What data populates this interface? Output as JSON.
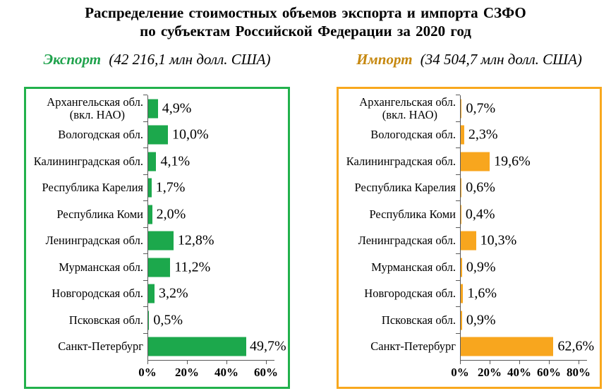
{
  "title": {
    "line1": "Распределение стоимостных объемов  экспорта  и  импорта СЗФО",
    "line2": "по  субъектам  Российской  Федерации за 2020 год"
  },
  "colors": {
    "axis": "#595959",
    "text": "#000000",
    "export_accent": "#1FA24C",
    "import_accent": "#C6880F"
  },
  "chart_data": [
    {
      "type": "bar",
      "orientation": "horizontal",
      "name": "Экспорт",
      "total_label": "(42 216,1 млн  долл. США)",
      "accent_color": "#1FA24C",
      "bar_color": "#1CA84C",
      "border_color": "#22B14C",
      "categories": [
        "Архангельская обл.\n(вкл. НАО)",
        "Вологодская обл.",
        "Калининградская обл.",
        "Республика Карелия",
        "Республика Коми",
        "Ленинградская обл.",
        "Мурманская обл.",
        "Новгородская обл.",
        "Псковская обл.",
        "Санкт-Петербург"
      ],
      "values": [
        4.9,
        10.0,
        4.1,
        1.7,
        2.0,
        12.8,
        11.2,
        3.2,
        0.5,
        49.7
      ],
      "value_labels": [
        "4,9%",
        "10,0%",
        "4,1%",
        "1,7%",
        "2,0%",
        "12,8%",
        "11,2%",
        "3,2%",
        "0,5%",
        "49,7%"
      ],
      "x_ticks": [
        "0%",
        "20%",
        "40%",
        "60%"
      ],
      "x_max": 60,
      "unit": "%",
      "grid": false,
      "legend": false
    },
    {
      "type": "bar",
      "orientation": "horizontal",
      "name": "Импорт",
      "total_label": "(34 504,7  млн  долл. США)",
      "accent_color": "#C6880F",
      "bar_color": "#F8A61E",
      "border_color": "#F8A81E",
      "categories": [
        "Архангельская обл.\n(вкл. НАО)",
        "Вологодская обл.",
        "Калининградская обл.",
        "Республика Карелия",
        "Республика Коми",
        "Ленинградская обл.",
        "Мурманская обл.",
        "Новгородская обл.",
        "Псковская обл.",
        "Санкт-Петербург"
      ],
      "values": [
        0.7,
        2.3,
        19.6,
        0.6,
        0.4,
        10.3,
        0.9,
        1.6,
        0.9,
        62.6
      ],
      "value_labels": [
        "0,7%",
        "2,3%",
        "19,6%",
        "0,6%",
        "0,4%",
        "10,3%",
        "0,9%",
        "1,6%",
        "0,9%",
        "62,6%"
      ],
      "x_ticks": [
        "0%",
        "20%",
        "40%",
        "60%",
        "80%"
      ],
      "x_max": 80,
      "unit": "%",
      "grid": false,
      "legend": false
    }
  ]
}
